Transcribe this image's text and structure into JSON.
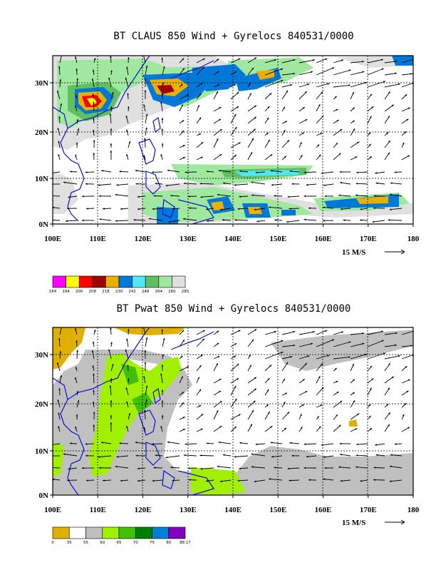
{
  "colors": {
    "frame": "#000000",
    "coast": "#1010d0",
    "gyre": "#000000"
  },
  "panels": [
    {
      "id": "top",
      "title": "BT CLAUS 850 Wind + Gyrelocs 840531/0000",
      "x_ticks": [
        "100E",
        "110E",
        "120E",
        "130E",
        "140E",
        "150E",
        "160E",
        "170E",
        "180"
      ],
      "y_ticks": [
        "0N",
        "10N",
        "20N",
        "30N"
      ],
      "vector_ref": "15 M/S",
      "colorbar": {
        "labels": [
          "184",
          "194",
          "200",
          "208",
          "218",
          "230",
          "242",
          "248",
          "264",
          "280",
          "285"
        ],
        "colors": [
          "#ff00ff",
          "#ffff00",
          "#ff0000",
          "#a00000",
          "#e8b000",
          "#0078d8",
          "#50e8f8",
          "#60c060",
          "#a0e8a0",
          "#e0e0e0"
        ]
      }
    },
    {
      "id": "bottom",
      "title": "BT Pwat 850 Wind + Gyrelocs 840531/0000",
      "x_ticks": [
        "100E",
        "110E",
        "120E",
        "130E",
        "140E",
        "150E",
        "160E",
        "170E",
        "180"
      ],
      "y_ticks": [
        "0N",
        "10N",
        "20N",
        "30N"
      ],
      "vector_ref": "15 M/S",
      "colorbar": {
        "labels": [
          "0",
          "35",
          "55",
          "60",
          "65",
          "70",
          "75",
          "80",
          "88.17"
        ],
        "colors": [
          "#e0b000",
          "#ffffff",
          "#c0c0c0",
          "#a0f000",
          "#40c000",
          "#008000",
          "#0080d0",
          "#8000c0"
        ]
      }
    }
  ],
  "chart_data": [
    {
      "type": "heatmap",
      "title": "BT CLAUS 850 Wind + Gyrelocs 840531/0000",
      "x_axis": {
        "range": [
          "100E",
          "180"
        ],
        "ticks": [
          "100E",
          "110E",
          "120E",
          "130E",
          "140E",
          "150E",
          "160E",
          "170E",
          "180"
        ]
      },
      "y_axis": {
        "range": [
          "0N",
          "35N"
        ],
        "ticks": [
          "0N",
          "10N",
          "20N",
          "30N"
        ]
      },
      "field": "brightness temperature (K)",
      "colorbar_levels": [
        184,
        194,
        200,
        208,
        218,
        230,
        242,
        248,
        264,
        280,
        285
      ],
      "overlay": "850 hPa wind vectors",
      "vector_reference": "15 M/S",
      "grid": true
    },
    {
      "type": "heatmap",
      "title": "BT Pwat 850 Wind + Gyrelocs 840531/0000",
      "x_axis": {
        "range": [
          "100E",
          "180"
        ],
        "ticks": [
          "100E",
          "110E",
          "120E",
          "130E",
          "140E",
          "150E",
          "160E",
          "170E",
          "180"
        ]
      },
      "y_axis": {
        "range": [
          "0N",
          "35N"
        ],
        "ticks": [
          "0N",
          "10N",
          "20N",
          "30N"
        ]
      },
      "field": "precipitable water",
      "colorbar_levels": [
        0,
        35,
        55,
        60,
        65,
        70,
        75,
        80,
        88.17
      ],
      "overlay": "850 hPa wind vectors",
      "vector_reference": "15 M/S",
      "grid": true
    }
  ]
}
